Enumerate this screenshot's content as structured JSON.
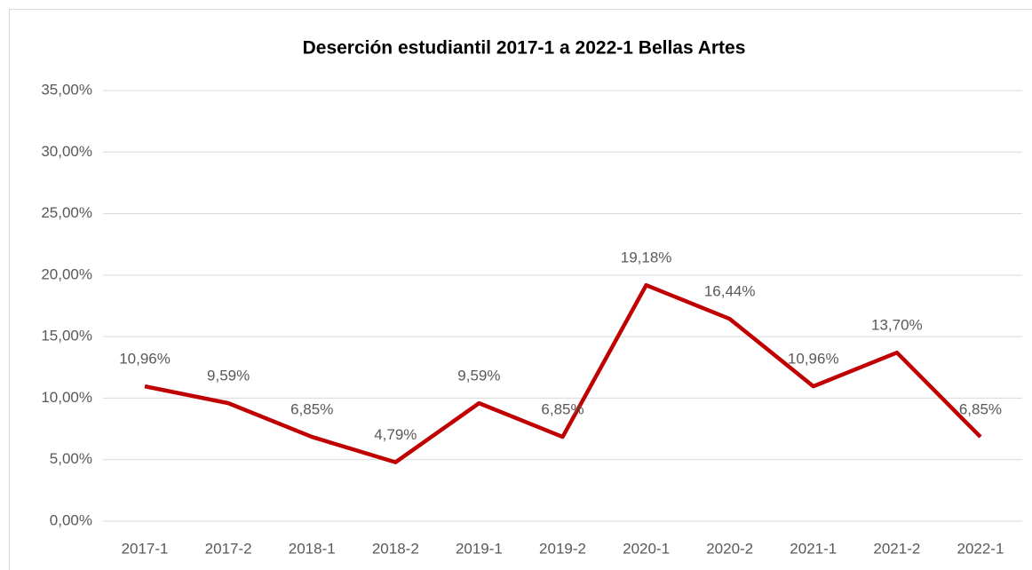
{
  "chart_data": {
    "type": "line",
    "title": "Deserción estudiantil 2017-1 a 2022-1 Bellas Artes",
    "categories": [
      "2017-1",
      "2017-2",
      "2018-1",
      "2018-2",
      "2019-1",
      "2019-2",
      "2020-1",
      "2020-2",
      "2021-1",
      "2021-2",
      "2022-1"
    ],
    "series": [
      {
        "color": "#c00000",
        "values": [
          10.96,
          9.59,
          6.85,
          4.79,
          9.59,
          6.85,
          19.18,
          16.44,
          10.96,
          13.7,
          6.85
        ],
        "value_labels": [
          "10,96%",
          "9,59%",
          "6,85%",
          "4,79%",
          "9,59%",
          "6,85%",
          "19,18%",
          "16,44%",
          "10,96%",
          "13,70%",
          "6,85%"
        ]
      }
    ],
    "ylim": [
      0,
      35
    ],
    "yticks": [
      {
        "value": 0,
        "label": "0,00%"
      },
      {
        "value": 5,
        "label": "5,00%"
      },
      {
        "value": 10,
        "label": "10,00%"
      },
      {
        "value": 15,
        "label": "15,00%"
      },
      {
        "value": 20,
        "label": "20,00%"
      },
      {
        "value": 25,
        "label": "25,00%"
      },
      {
        "value": 30,
        "label": "30,00%"
      },
      {
        "value": 35,
        "label": "35,00%"
      }
    ],
    "grid": true
  }
}
